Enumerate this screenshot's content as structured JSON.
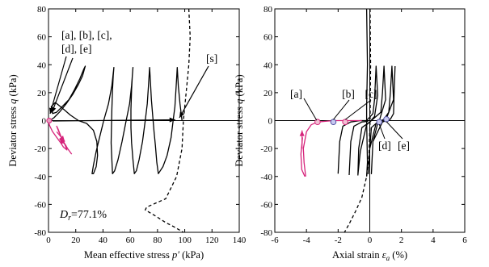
{
  "chart_data": [
    {
      "type": "line",
      "panel": "left",
      "xlabel": "Mean effective stress",
      "xlabel_symbol": "p′",
      "xlabel_unit": "(kPa)",
      "ylabel": "Deviator stress",
      "ylabel_symbol": "q",
      "ylabel_unit": "(kPa)",
      "xlim": [
        0,
        140
      ],
      "ylim": [
        -80,
        80
      ],
      "xticks": [
        "0",
        "20",
        "40",
        "60",
        "80",
        "100",
        "120",
        "140"
      ],
      "yticks": [
        "-80",
        "-60",
        "-40",
        "-20",
        "0",
        "20",
        "40",
        "60",
        "80"
      ],
      "annotations": [
        {
          "text_lines": [
            "[a], [b], [c],",
            "[d], [e]"
          ]
        },
        {
          "text_lines": [
            "[s]"
          ]
        }
      ],
      "note_main": "D",
      "note_sub": "r",
      "note_rest": "=77.1%",
      "series": [
        {
          "color": "#000000",
          "style": "solid",
          "points": [
            [
              98,
              0
            ],
            [
              96.5,
              12
            ],
            [
              95.3,
              25
            ],
            [
              94.5,
              38
            ],
            [
              93.7,
              25
            ],
            [
              92.8,
              10
            ],
            [
              91.5,
              0
            ],
            [
              90,
              -12
            ],
            [
              87,
              -25
            ],
            [
              84,
              -33
            ],
            [
              80.6,
              -38
            ],
            [
              79.5,
              -30
            ],
            [
              78.5,
              -18
            ],
            [
              77.5,
              -8
            ],
            [
              76.5,
              3
            ],
            [
              75.5,
              15
            ],
            [
              74.8,
              28
            ],
            [
              74.2,
              38
            ],
            [
              73.4,
              25
            ],
            [
              72.5,
              12
            ],
            [
              71,
              0
            ],
            [
              69,
              -15
            ],
            [
              66.5,
              -28
            ],
            [
              64.5,
              -36
            ],
            [
              63,
              -38
            ],
            [
              62,
              -28
            ],
            [
              61,
              -16
            ],
            [
              60.5,
              -5
            ],
            [
              60.5,
              8
            ],
            [
              61,
              22
            ],
            [
              61.5,
              32
            ],
            [
              62,
              38
            ],
            [
              61,
              25
            ],
            [
              59.5,
              12
            ],
            [
              57,
              0
            ],
            [
              54,
              -15
            ],
            [
              51,
              -28
            ],
            [
              48.5,
              -36
            ],
            [
              47,
              -38
            ],
            [
              46.5,
              -28
            ],
            [
              46,
              -16
            ],
            [
              46.2,
              -5
            ],
            [
              46.5,
              8
            ],
            [
              47,
              22
            ],
            [
              47.5,
              32
            ],
            [
              48,
              38
            ],
            [
              46.5,
              25
            ],
            [
              44,
              12
            ],
            [
              40.5,
              0
            ],
            [
              37.5,
              -12
            ],
            [
              35,
              -22
            ],
            [
              33,
              -32
            ],
            [
              32,
              -38
            ],
            [
              33,
              -38
            ],
            [
              35,
              -33
            ],
            [
              36,
              -25
            ],
            [
              35.5,
              -15
            ],
            [
              33,
              -7
            ],
            [
              28,
              -2
            ],
            [
              22,
              0
            ],
            [
              16,
              4
            ],
            [
              10,
              9
            ],
            [
              5,
              13
            ],
            [
              2,
              10
            ],
            [
              3,
              5
            ],
            [
              6,
              6
            ],
            [
              10,
              10
            ],
            [
              15,
              15
            ],
            [
              19,
              22
            ],
            [
              23,
              30
            ],
            [
              26,
              37
            ],
            [
              27,
              39
            ],
            [
              25,
              32
            ],
            [
              22,
              26
            ],
            [
              18,
              19
            ],
            [
              13,
              12
            ],
            [
              8,
              6
            ],
            [
              4,
              2
            ],
            [
              1,
              0
            ]
          ]
        },
        {
          "color": "#d6247b",
          "style": "solid",
          "points": [
            [
              1,
              0
            ],
            [
              0.3,
              -2
            ],
            [
              1,
              -4
            ],
            [
              3,
              -8
            ],
            [
              6,
              -12
            ],
            [
              9,
              -16
            ],
            [
              11,
              -19
            ],
            [
              13.5,
              -21
            ],
            [
              12,
              -17
            ],
            [
              9,
              -11
            ],
            [
              7,
              -6
            ],
            [
              6,
              -4
            ],
            [
              8,
              -9
            ],
            [
              11,
              -15
            ],
            [
              14,
              -20
            ],
            [
              17,
              -24
            ]
          ]
        },
        {
          "color": "#000000",
          "style": "dashed",
          "points": [
            [
              103,
              80
            ],
            [
              104,
              60
            ],
            [
              103,
              40
            ],
            [
              101,
              20
            ],
            [
              99,
              0
            ],
            [
              98,
              -20
            ],
            [
              94,
              -40
            ],
            [
              86,
              -56
            ],
            [
              72,
              -62
            ],
            [
              71,
              -64
            ],
            [
              78,
              -68
            ],
            [
              86,
              -73
            ],
            [
              92,
              -76
            ],
            [
              99,
              -80
            ]
          ]
        }
      ]
    },
    {
      "type": "line",
      "panel": "right",
      "xlabel": "Axial strain",
      "xlabel_symbol": "ε",
      "xlabel_sub": "a",
      "xlabel_unit": "(%)",
      "ylabel": "Deviator stress",
      "ylabel_symbol": "q",
      "ylabel_unit": "(kPa)",
      "xlim": [
        -6,
        6
      ],
      "ylim": [
        -80,
        80
      ],
      "xticks": [
        "-6",
        "-4",
        "-2",
        "0",
        "2",
        "4",
        "6"
      ],
      "yticks": [
        "-80",
        "-60",
        "-40",
        "-20",
        "0",
        "20",
        "40",
        "60",
        "80"
      ],
      "annotations": [
        {
          "text": "[a]",
          "point": [
            -3.3,
            -1
          ]
        },
        {
          "text": "[b]",
          "point": [
            -2.3,
            -1
          ]
        },
        {
          "text": "[c]",
          "point": [
            -1.55,
            -1
          ]
        },
        {
          "text": "[d]",
          "point": [
            0.6,
            -1
          ]
        },
        {
          "text": "[e]",
          "point": [
            1.05,
            1
          ]
        }
      ],
      "series": [
        {
          "color": "#000000",
          "style": "solid",
          "points": [
            [
              -0.2,
              80
            ],
            [
              -0.15,
              40
            ],
            [
              -0.2,
              10
            ],
            [
              -0.2,
              0
            ],
            [
              -0.15,
              -30
            ],
            [
              -0.2,
              -40
            ]
          ]
        },
        {
          "color": "#000000",
          "style": "solid",
          "points": [
            [
              -2.0,
              -38
            ],
            [
              -1.9,
              -15
            ],
            [
              -1.7,
              -4
            ],
            [
              -1.2,
              -1
            ],
            [
              -0.6,
              0
            ],
            [
              -0.2,
              0
            ],
            [
              0.2,
              5
            ],
            [
              0.3,
              15
            ],
            [
              0.4,
              39
            ],
            [
              0.5,
              18
            ],
            [
              0.3,
              3
            ],
            [
              0,
              -1
            ],
            [
              -0.5,
              -5
            ],
            [
              -0.7,
              -20
            ],
            [
              -0.75,
              -39
            ],
            [
              -0.6,
              -22
            ],
            [
              -0.2,
              -3
            ],
            [
              0.3,
              2
            ],
            [
              0.7,
              6
            ],
            [
              0.8,
              20
            ],
            [
              0.9,
              39
            ],
            [
              1.0,
              15
            ],
            [
              0.6,
              0
            ],
            [
              0.1,
              -5
            ],
            [
              0,
              -20
            ],
            [
              -0.1,
              -38
            ],
            [
              0,
              -20
            ],
            [
              0.4,
              -2
            ],
            [
              0.9,
              1
            ],
            [
              1.2,
              6
            ],
            [
              1.3,
              20
            ],
            [
              1.4,
              39
            ],
            [
              1.5,
              15
            ],
            [
              1.0,
              0
            ],
            [
              0.5,
              -2
            ],
            [
              0.2,
              -15
            ],
            [
              0.1,
              -38
            ],
            [
              0.2,
              -15
            ],
            [
              0.8,
              -1
            ],
            [
              1.3,
              1
            ],
            [
              1.5,
              5
            ],
            [
              1.55,
              25
            ],
            [
              1.6,
              39
            ]
          ]
        },
        {
          "color": "#000000",
          "style": "solid",
          "points": [
            [
              -1.3,
              -39
            ],
            [
              -1.2,
              -15
            ],
            [
              -1.0,
              -4
            ],
            [
              -0.5,
              -1
            ],
            [
              -0.1,
              -0.5
            ]
          ]
        },
        {
          "color": "#d6247b",
          "style": "solid",
          "points": [
            [
              -4.05,
              -40
            ],
            [
              -4.15,
              -30
            ],
            [
              -4.2,
              -20
            ],
            [
              -4.0,
              -8
            ],
            [
              -3.7,
              -3
            ],
            [
              -3.3,
              -1
            ],
            [
              -2.8,
              -0.5
            ],
            [
              -2.3,
              0
            ],
            [
              -1.55,
              0
            ],
            [
              -1.0,
              0
            ],
            [
              -0.5,
              0
            ]
          ]
        },
        {
          "color": "#d6247b",
          "style": "solid",
          "points": [
            [
              -4.25,
              -12
            ],
            [
              -4.35,
              -24
            ],
            [
              -4.3,
              -35
            ],
            [
              -4.1,
              -40
            ]
          ]
        },
        {
          "color": "#000000",
          "style": "dashed",
          "points": [
            [
              0.02,
              80
            ],
            [
              0.05,
              40
            ],
            [
              0.02,
              0
            ],
            [
              -0.05,
              -25
            ],
            [
              -0.2,
              -40
            ],
            [
              -0.5,
              -55
            ],
            [
              -0.9,
              -65
            ],
            [
              -1.3,
              -74
            ],
            [
              -1.6,
              -80
            ]
          ]
        }
      ]
    }
  ]
}
